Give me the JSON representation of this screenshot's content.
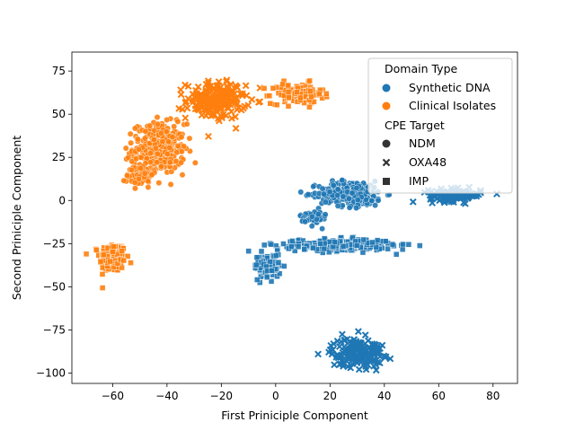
{
  "chart_data": {
    "type": "scatter",
    "title": "",
    "xlabel": "First Priniciple Component",
    "ylabel": "Second Priniciple Component",
    "xlim": [
      -75,
      89
    ],
    "ylim": [
      -106,
      86
    ],
    "xticks": [
      -60,
      -40,
      -20,
      0,
      20,
      40,
      60,
      80
    ],
    "yticks": [
      -100,
      -75,
      -50,
      -25,
      0,
      25,
      50,
      75
    ],
    "grid": false,
    "legend": {
      "placement": "top-right",
      "hue_title": "Domain Type",
      "hue_entries": [
        {
          "label": "Synthetic DNA",
          "color": "#1f77b4"
        },
        {
          "label": "Clinical Isolates",
          "color": "#ff7f0e"
        }
      ],
      "style_title": "CPE Target",
      "style_entries": [
        {
          "label": "NDM",
          "marker": "circle"
        },
        {
          "label": "OXA48",
          "marker": "x"
        },
        {
          "label": "IMP",
          "marker": "square"
        }
      ]
    },
    "colors": {
      "Synthetic DNA": "#1f77b4",
      "Clinical Isolates": "#ff7f0e"
    },
    "clusters": [
      {
        "domain": "Clinical Isolates",
        "target": "IMP",
        "center": [
          -60,
          -33
        ],
        "spread": [
          4,
          7
        ],
        "n": 220
      },
      {
        "domain": "Clinical Isolates",
        "target": "NDM",
        "center": [
          -43,
          30
        ],
        "spread": [
          8,
          12
        ],
        "n": 320
      },
      {
        "domain": "Clinical Isolates",
        "target": "OXA48",
        "center": [
          -22,
          58
        ],
        "spread": [
          9,
          9
        ],
        "n": 200
      },
      {
        "domain": "Clinical Isolates",
        "target": "IMP",
        "center": [
          8,
          62
        ],
        "spread": [
          8,
          5
        ],
        "n": 120
      },
      {
        "domain": "Clinical Isolates",
        "target": "NDM",
        "center": [
          -50,
          15
        ],
        "spread": [
          4,
          6
        ],
        "n": 60
      },
      {
        "domain": "Synthetic DNA",
        "target": "NDM",
        "center": [
          28,
          4
        ],
        "spread": [
          10,
          6
        ],
        "n": 300
      },
      {
        "domain": "Synthetic DNA",
        "target": "OXA48",
        "center": [
          66,
          3
        ],
        "spread": [
          8,
          3
        ],
        "n": 120
      },
      {
        "domain": "Synthetic DNA",
        "target": "IMP",
        "center": [
          22,
          -26
        ],
        "spread": [
          18,
          3
        ],
        "n": 220
      },
      {
        "domain": "Synthetic DNA",
        "target": "IMP",
        "center": [
          -3,
          -38
        ],
        "spread": [
          4,
          6
        ],
        "n": 100
      },
      {
        "domain": "Synthetic DNA",
        "target": "OXA48",
        "center": [
          30,
          -88
        ],
        "spread": [
          8,
          7
        ],
        "n": 180
      },
      {
        "domain": "Synthetic DNA",
        "target": "NDM",
        "center": [
          14,
          -10
        ],
        "spread": [
          4,
          4
        ],
        "n": 50
      }
    ]
  }
}
